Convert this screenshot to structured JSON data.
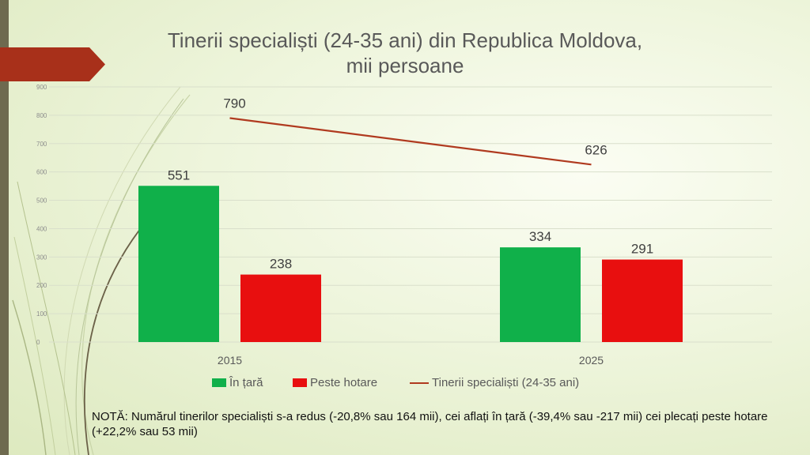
{
  "title_lines": [
    "Tinerii specialiști (24-35 ani) din Republica Moldova,",
    "mii persoane"
  ],
  "colors": {
    "in_tara": "#10b04a",
    "peste_hotare": "#e80f0f",
    "total": "#b03a1f",
    "accent_arrow": "#a8301a"
  },
  "legend": {
    "in_tara": "În țară",
    "peste_hotare": "Peste hotare",
    "total": "Tinerii specialiști (24-35 ani)"
  },
  "note": "NOTĂ: Numărul tinerilor specialiști s-a redus (-20,8% sau 164 mii), cei aflați în țară (-39,4% sau -217 mii) cei plecați peste hotare (+22,2% sau 53 mii)",
  "chart_data": {
    "type": "bar",
    "categories": [
      "2015",
      "2025"
    ],
    "series": [
      {
        "name": "În țară",
        "kind": "bar",
        "values": [
          551,
          334
        ]
      },
      {
        "name": "Peste hotare",
        "kind": "bar",
        "values": [
          238,
          291
        ]
      },
      {
        "name": "Tinerii specialiști (24-35 ani)",
        "kind": "line",
        "values": [
          790,
          626
        ]
      }
    ],
    "ylim": [
      0,
      900
    ],
    "yticks": [
      0,
      100,
      200,
      300,
      400,
      500,
      600,
      700,
      800,
      900
    ],
    "grid": true,
    "legend_position": "bottom",
    "title": "Tinerii specialiști (24-35 ani) din Republica Moldova, mii persoane"
  }
}
